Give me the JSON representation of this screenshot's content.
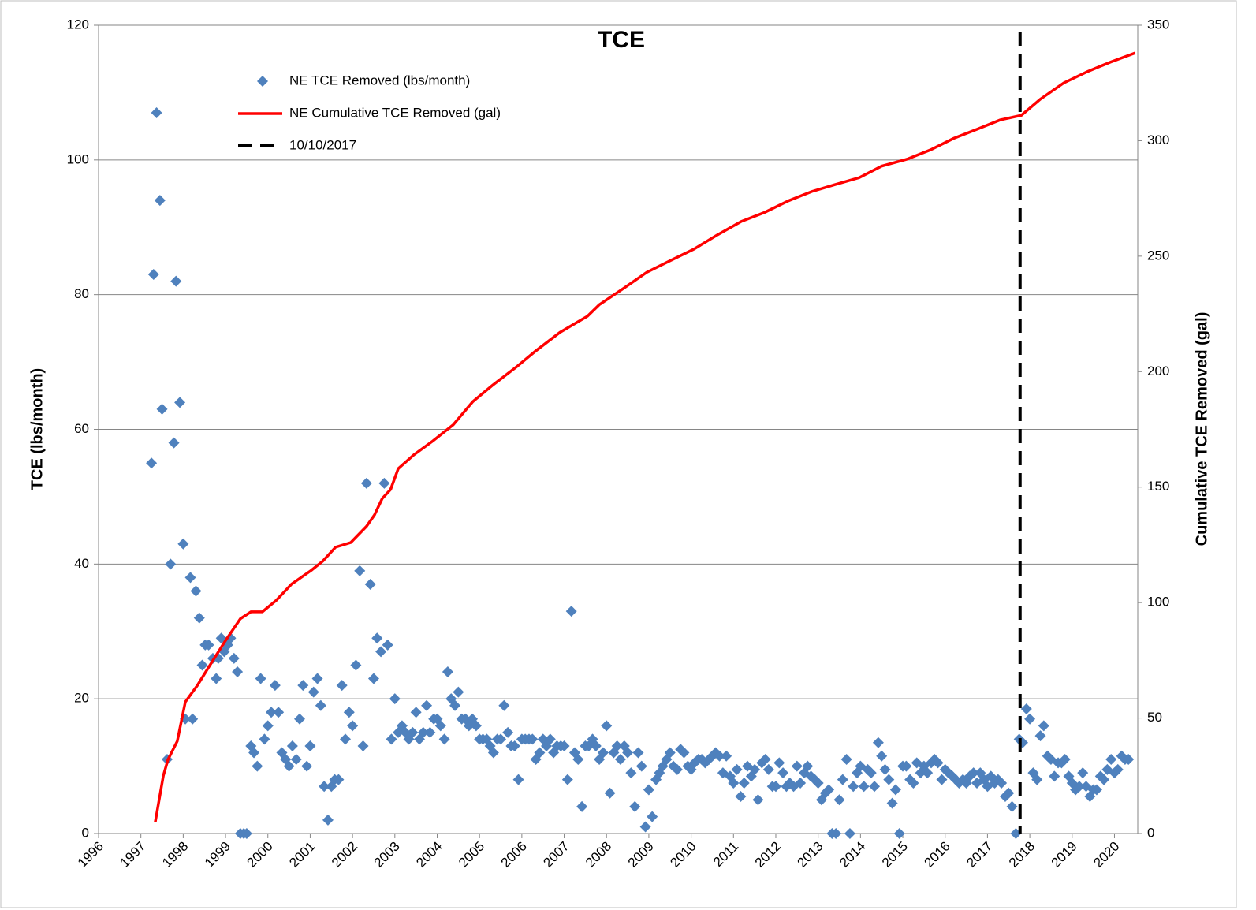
{
  "chart_data": {
    "type": "scatter",
    "title": "TCE",
    "y_label": "TCE (lbs/month)",
    "y2_label": "Cumulative TCE Removed (gal)",
    "xlim": [
      1996,
      2020.55
    ],
    "xticks": [
      1996,
      1997,
      1998,
      1999,
      2000,
      2001,
      2002,
      2003,
      2004,
      2005,
      2006,
      2007,
      2008,
      2009,
      2010,
      2011,
      2012,
      2013,
      2014,
      2015,
      2016,
      2017,
      2018,
      2019,
      2020
    ],
    "ylim": [
      0,
      120
    ],
    "yticks": [
      0,
      20,
      40,
      60,
      80,
      100,
      120
    ],
    "y2lim": [
      0,
      350
    ],
    "y2ticks": [
      0,
      50,
      100,
      150,
      200,
      250,
      300,
      350
    ],
    "grid": true,
    "legend": "upper left",
    "series": [
      {
        "name": "NE TCE Removed (lbs/month)",
        "type": "scatter",
        "color": "#4f81bd",
        "x": [
          1997.25,
          1997.3,
          1997.37,
          1997.45,
          1997.5,
          1997.62,
          1997.7,
          1997.78,
          1997.83,
          1997.92,
          1998.0,
          1998.05,
          1998.17,
          1998.22,
          1998.3,
          1998.38,
          1998.45,
          1998.52,
          1998.6,
          1998.7,
          1998.78,
          1998.83,
          1998.9,
          1998.97,
          1999.05,
          1999.12,
          1999.2,
          1999.28,
          1999.35,
          1999.43,
          1999.5,
          1999.6,
          1999.67,
          1999.75,
          1999.83,
          1999.92,
          2000.0,
          2000.08,
          2000.17,
          2000.25,
          2000.33,
          2000.42,
          2000.5,
          2000.58,
          2000.67,
          2000.75,
          2000.83,
          2000.92,
          2001.0,
          2001.08,
          2001.17,
          2001.25,
          2001.33,
          2001.42,
          2001.5,
          2001.58,
          2001.67,
          2001.75,
          2001.83,
          2001.92,
          2002.0,
          2002.08,
          2002.17,
          2002.25,
          2002.33,
          2002.42,
          2002.5,
          2002.58,
          2002.67,
          2002.75,
          2002.83,
          2002.92,
          2003.0,
          2003.08,
          2003.17,
          2003.25,
          2003.33,
          2003.42,
          2003.5,
          2003.58,
          2003.67,
          2003.75,
          2003.83,
          2003.92,
          2004.0,
          2004.08,
          2004.17,
          2004.25,
          2004.33,
          2004.42,
          2004.5,
          2004.58,
          2004.67,
          2004.75,
          2004.83,
          2004.92,
          2005.0,
          2005.08,
          2005.17,
          2005.25,
          2005.33,
          2005.42,
          2005.5,
          2005.58,
          2005.67,
          2005.75,
          2005.83,
          2005.92,
          2006.0,
          2006.08,
          2006.17,
          2006.25,
          2006.33,
          2006.42,
          2006.5,
          2006.58,
          2006.67,
          2006.75,
          2006.83,
          2006.92,
          2007.0,
          2007.08,
          2007.17,
          2007.25,
          2007.33,
          2007.42,
          2007.5,
          2007.58,
          2007.67,
          2007.75,
          2007.83,
          2007.92,
          2008.0,
          2008.08,
          2008.17,
          2008.25,
          2008.33,
          2008.42,
          2008.5,
          2008.58,
          2008.67,
          2008.75,
          2008.83,
          2008.92,
          2009.0,
          2009.08,
          2009.17,
          2009.25,
          2009.33,
          2009.42,
          2009.5,
          2009.58,
          2009.67,
          2009.75,
          2009.83,
          2009.92,
          2010.0,
          2010.08,
          2010.17,
          2010.25,
          2010.33,
          2010.42,
          2010.5,
          2010.58,
          2010.67,
          2010.75,
          2010.83,
          2010.92,
          2011.0,
          2011.08,
          2011.17,
          2011.25,
          2011.33,
          2011.42,
          2011.5,
          2011.58,
          2011.67,
          2011.75,
          2011.83,
          2011.92,
          2012.0,
          2012.08,
          2012.17,
          2012.25,
          2012.33,
          2012.42,
          2012.5,
          2012.58,
          2012.67,
          2012.75,
          2012.83,
          2012.92,
          2013.0,
          2013.08,
          2013.17,
          2013.25,
          2013.33,
          2013.42,
          2013.5,
          2013.58,
          2013.67,
          2013.75,
          2013.83,
          2013.92,
          2014.0,
          2014.08,
          2014.17,
          2014.25,
          2014.33,
          2014.42,
          2014.5,
          2014.58,
          2014.67,
          2014.75,
          2014.83,
          2014.92,
          2015.0,
          2015.08,
          2015.17,
          2015.25,
          2015.33,
          2015.42,
          2015.5,
          2015.58,
          2015.67,
          2015.75,
          2015.83,
          2015.92,
          2016.0,
          2016.08,
          2016.17,
          2016.25,
          2016.33,
          2016.42,
          2016.5,
          2016.58,
          2016.67,
          2016.75,
          2016.83,
          2016.92,
          2017.0,
          2017.08,
          2017.17,
          2017.25,
          2017.33,
          2017.42,
          2017.5,
          2017.58,
          2017.67,
          2017.75,
          2017.83,
          2017.92,
          2018.0,
          2018.08,
          2018.17,
          2018.25,
          2018.33,
          2018.42,
          2018.5,
          2018.58,
          2018.67,
          2018.75,
          2018.83,
          2018.92,
          2019.0,
          2019.08,
          2019.17,
          2019.25,
          2019.33,
          2019.42,
          2019.5,
          2019.58,
          2019.67,
          2019.75,
          2019.83,
          2019.92,
          2020.0,
          2020.08,
          2020.17,
          2020.25,
          2020.33
        ],
        "values": [
          55,
          83,
          107,
          94,
          63,
          11,
          40,
          58,
          82,
          64,
          43,
          17,
          38,
          17,
          36,
          32,
          25,
          28,
          28,
          26,
          23,
          26,
          29,
          27,
          28,
          29,
          26,
          24,
          0,
          0,
          0,
          13,
          12,
          10,
          23,
          14,
          16,
          18,
          22,
          18,
          12,
          11,
          10,
          13,
          11,
          17,
          22,
          10,
          13,
          21,
          23,
          19,
          7,
          2,
          7,
          8,
          8,
          22,
          14,
          18,
          16,
          25,
          39,
          13,
          52,
          37,
          23,
          29,
          27,
          52,
          28,
          14,
          20,
          15,
          16,
          15,
          14,
          15,
          18,
          14,
          15,
          19,
          15,
          17,
          17,
          16,
          14,
          24,
          20,
          19,
          21,
          17,
          17,
          16,
          17,
          16,
          14,
          14,
          14,
          13,
          12,
          14,
          14,
          19,
          15,
          13,
          13,
          8,
          14,
          14,
          14,
          14,
          11,
          12,
          14,
          13,
          14,
          12,
          13,
          13,
          13,
          8,
          33,
          12,
          11,
          4,
          13,
          13,
          14,
          13,
          11,
          12,
          16,
          6,
          12,
          13,
          11,
          13,
          12,
          9,
          4,
          12,
          10,
          1,
          6.5,
          2.5,
          8,
          9,
          10,
          11,
          12,
          10,
          9.5,
          12.5,
          12,
          10,
          9.5,
          10.5,
          11,
          11,
          10.5,
          11,
          11.5,
          12,
          11.5,
          9,
          11.5,
          8.5,
          7.5,
          9.5,
          5.5,
          7.5,
          10,
          8.5,
          9.5,
          5,
          10.5,
          11,
          9.5,
          7,
          7,
          10.5,
          9,
          7,
          7.5,
          7,
          10,
          7.5,
          9,
          10,
          8.5,
          8,
          7.5,
          5,
          6,
          6.5,
          0,
          0,
          5,
          8,
          11,
          0,
          7,
          9,
          10,
          7,
          9.5,
          9,
          7,
          13.5,
          11.5,
          9.5,
          8,
          4.5,
          6.5,
          0,
          10,
          10,
          8,
          7.5,
          10.5,
          9,
          10,
          9,
          10.5,
          11,
          10.5,
          8,
          9.5,
          9,
          8.5,
          8,
          7.5,
          8,
          7.5,
          8.5,
          9,
          7.5,
          9,
          8,
          7,
          8.5,
          7.5,
          8,
          7.5,
          5.5,
          6,
          4,
          0,
          14,
          13.5,
          18.5,
          17,
          9,
          8,
          14.5,
          16,
          11.5,
          11,
          8.5,
          10.5,
          10.5,
          11,
          8.5,
          7.5,
          6.5,
          7,
          9,
          7,
          5.5,
          6.5,
          6.5,
          8.5,
          8,
          9.5,
          11,
          9,
          9.5,
          11.5,
          11,
          11
        ]
      },
      {
        "name": "NE Cumulative TCE Removed (gal)",
        "type": "line",
        "axis": "y2",
        "color": "#ff0000",
        "x": [
          1997.34,
          1997.53,
          1997.64,
          1997.86,
          1998.05,
          1998.33,
          1998.6,
          1998.98,
          1999.35,
          1999.6,
          1999.87,
          2000.2,
          2000.56,
          2001.03,
          2001.3,
          2001.6,
          2001.96,
          2002.33,
          2002.52,
          2002.7,
          2002.9,
          2003.08,
          2003.45,
          2003.9,
          2004.38,
          2004.84,
          2005.3,
          2005.87,
          2006.33,
          2006.9,
          2007.55,
          2007.83,
          2008.4,
          2008.95,
          2009.5,
          2010.06,
          2010.6,
          2011.18,
          2011.74,
          2012.3,
          2012.85,
          2013.4,
          2013.97,
          2014.5,
          2015.1,
          2015.65,
          2016.2,
          2016.76,
          2017.3,
          2017.8,
          2018.25,
          2018.8,
          2019.37,
          2019.9,
          2020.49
        ],
        "values": [
          5,
          25,
          32,
          40,
          57,
          64,
          72,
          83,
          93,
          96,
          96,
          101,
          108,
          114,
          118,
          124,
          126,
          133,
          138,
          145,
          149,
          158,
          164,
          170,
          177,
          187,
          194,
          202,
          209,
          217,
          224,
          229,
          236,
          243,
          248,
          253,
          259,
          265,
          269,
          274,
          278,
          281,
          284,
          289,
          292,
          296,
          301,
          305,
          309,
          311,
          318,
          325,
          330,
          334,
          338
        ]
      }
    ],
    "annotations": [
      {
        "label": "10/10/2017",
        "x": 2017.77,
        "style": "dashed",
        "color": "#000000"
      }
    ]
  }
}
